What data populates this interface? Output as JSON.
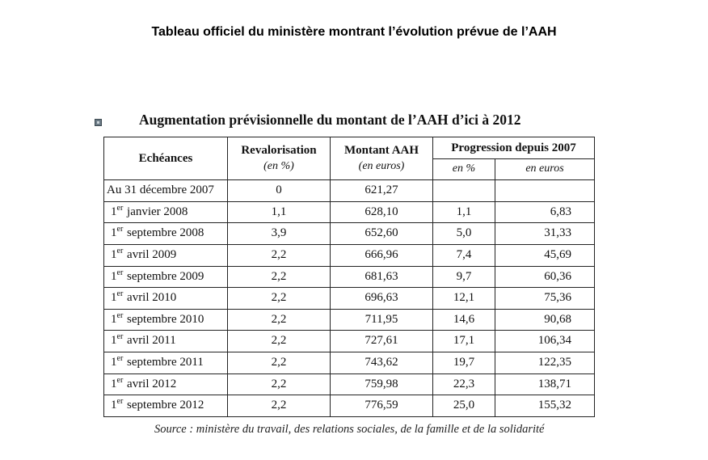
{
  "page": {
    "title": "Tableau officiel du ministère montrant l’évolution prévue de l’AAH"
  },
  "table": {
    "title": "Augmentation prévisionnelle du montant de l’AAH d’ici à 2012",
    "headers": {
      "echeances": "Echéances",
      "revalorisation": "Revalorisation",
      "revalorisation_unit": "(en %)",
      "montant": "Montant AAH",
      "montant_unit": "(en euros)",
      "progression": "Progression depuis 2007",
      "progression_pct": "en %",
      "progression_eur": "en euros"
    },
    "rows": [
      {
        "sup": "",
        "echeance": "Au 31 décembre 2007",
        "revalorisation": "0",
        "montant": "621,27",
        "pct": "",
        "eur": ""
      },
      {
        "sup": "er",
        "echeance": " janvier 2008",
        "revalorisation": "1,1",
        "montant": "628,10",
        "pct": "1,1",
        "eur": "6,83"
      },
      {
        "sup": "er",
        "echeance": " septembre 2008",
        "revalorisation": "3,9",
        "montant": "652,60",
        "pct": "5,0",
        "eur": "31,33"
      },
      {
        "sup": "er",
        "echeance": " avril 2009",
        "revalorisation": "2,2",
        "montant": "666,96",
        "pct": "7,4",
        "eur": "45,69"
      },
      {
        "sup": "er",
        "echeance": " septembre 2009",
        "revalorisation": "2,2",
        "montant": "681,63",
        "pct": "9,7",
        "eur": "60,36"
      },
      {
        "sup": "er",
        "echeance": " avril 2010",
        "revalorisation": "2,2",
        "montant": "696,63",
        "pct": "12,1",
        "eur": "75,36"
      },
      {
        "sup": "er",
        "echeance": " septembre 2010",
        "revalorisation": "2,2",
        "montant": "711,95",
        "pct": "14,6",
        "eur": "90,68"
      },
      {
        "sup": "er",
        "echeance": " avril 2011",
        "revalorisation": "2,2",
        "montant": "727,61",
        "pct": "17,1",
        "eur": "106,34"
      },
      {
        "sup": "er",
        "echeance": " septembre 2011",
        "revalorisation": "2,2",
        "montant": "743,62",
        "pct": "19,7",
        "eur": "122,35"
      },
      {
        "sup": "er",
        "echeance": " avril 2012",
        "revalorisation": "2,2",
        "montant": "759,98",
        "pct": "22,3",
        "eur": "138,71"
      },
      {
        "sup": "er",
        "echeance": " septembre 2012",
        "revalorisation": "2,2",
        "montant": "776,59",
        "pct": "25,0",
        "eur": "155,32"
      }
    ],
    "row_prefix": "1",
    "source": "Source : ministère du travail, des relations sociales, de la famille et de la solidarité"
  }
}
